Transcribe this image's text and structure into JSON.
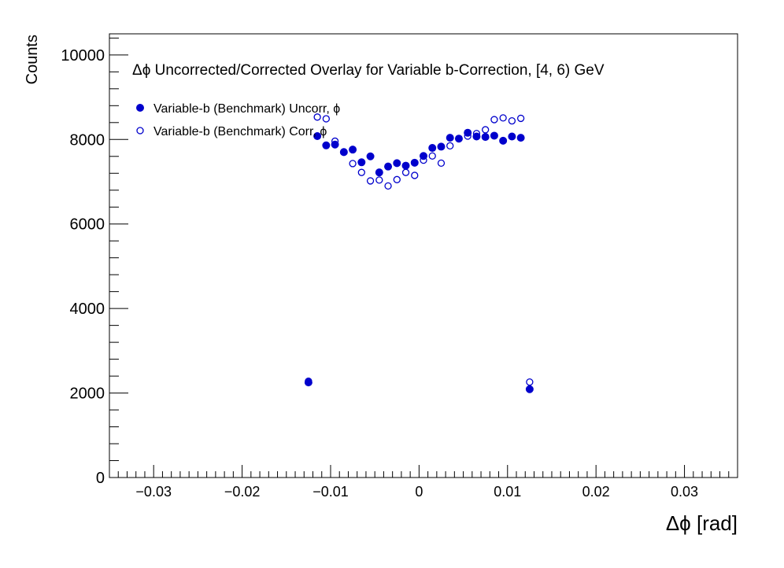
{
  "chart_data": {
    "type": "scatter",
    "title": "Δϕ Uncorrected/Corrected Overlay for Variable b-Correction, [4, 6) GeV",
    "xlabel": "Δϕ  [rad]",
    "ylabel": "Counts",
    "xlim": [
      -0.035,
      0.036
    ],
    "ylim": [
      0,
      10500
    ],
    "x_ticks": [
      -0.03,
      -0.02,
      -0.01,
      0,
      0.01,
      0.02,
      0.03
    ],
    "x_tick_labels": [
      "−0.03",
      "−0.02",
      "−0.01",
      "0",
      "0.01",
      "0.02",
      "0.03"
    ],
    "y_ticks": [
      0,
      2000,
      4000,
      6000,
      8000,
      10000
    ],
    "y_tick_labels": [
      "0",
      "2000",
      "4000",
      "6000",
      "8000",
      "10000"
    ],
    "legend_position": "top-left",
    "grid": false,
    "series": [
      {
        "name": "Variable-b (Benchmark) Uncorr, ϕ",
        "marker": "filled-circle",
        "color": "#0000cc",
        "x": [
          -0.0125,
          -0.0115,
          -0.0105,
          -0.0095,
          -0.0085,
          -0.0075,
          -0.0065,
          -0.0055,
          -0.0045,
          -0.0035,
          -0.0025,
          -0.0015,
          -0.0005,
          0.0005,
          0.0015,
          0.0025,
          0.0035,
          0.0045,
          0.0055,
          0.0065,
          0.0075,
          0.0085,
          0.0095,
          0.0105,
          0.0115,
          0.0125
        ],
        "y": [
          2250,
          8080,
          7860,
          7880,
          7700,
          7760,
          7460,
          7600,
          7220,
          7360,
          7440,
          7380,
          7450,
          7610,
          7800,
          7830,
          8040,
          8020,
          8160,
          8070,
          8060,
          8090,
          7970,
          8070,
          8040,
          2090
        ]
      },
      {
        "name": "Variable-b (Benchmark) Corr, ϕ",
        "marker": "open-circle",
        "color": "#0000cc",
        "x": [
          -0.0125,
          -0.0115,
          -0.0105,
          -0.0095,
          -0.0085,
          -0.0075,
          -0.0065,
          -0.0055,
          -0.0045,
          -0.0035,
          -0.0025,
          -0.0015,
          -0.0005,
          0.0005,
          0.0015,
          0.0025,
          0.0035,
          0.0045,
          0.0055,
          0.0065,
          0.0075,
          0.0085,
          0.0095,
          0.0105,
          0.0115,
          0.0125
        ],
        "y": [
          2280,
          8530,
          8490,
          7960,
          7710,
          7430,
          7220,
          7020,
          7040,
          6900,
          7050,
          7220,
          7150,
          7510,
          7610,
          7440,
          7850,
          8020,
          8080,
          8140,
          8230,
          8470,
          8510,
          8440,
          8500,
          2260
        ]
      }
    ]
  }
}
